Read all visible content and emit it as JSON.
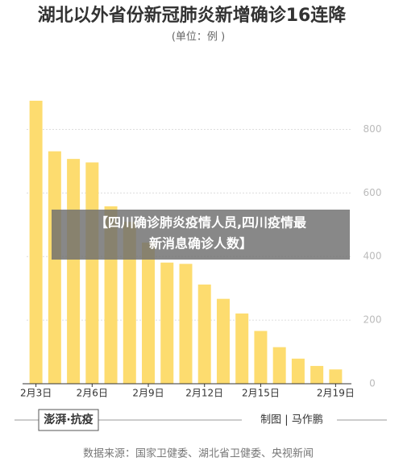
{
  "chart_data": {
    "type": "bar",
    "title": "湖北以外省份新冠肺炎新增确诊16连降",
    "subtitle": "(单位：例 )",
    "categories": [
      "2月3日",
      null,
      null,
      "2月6日",
      null,
      null,
      "2月9日",
      null,
      null,
      "2月12日",
      null,
      null,
      "2月15日",
      null,
      null,
      null,
      "2月19日"
    ],
    "values": [
      890,
      731,
      707,
      696,
      558,
      509,
      444,
      381,
      377,
      312,
      267,
      221,
      166,
      115,
      79,
      56,
      45
    ],
    "color": "#fddc6f",
    "ylim": [
      0,
      900
    ],
    "yticks": [
      0,
      200,
      400,
      600,
      800
    ],
    "grid": true,
    "logo": "澎湃·抗疫",
    "credit": "制图 | 马作鹏",
    "source": "数据来源：国家卫健委、湖北省卫健委、央视新闻",
    "banner": [
      "【四川确诊肺炎疫情人员,四川疫情最",
      "新消息确诊人数】"
    ]
  }
}
